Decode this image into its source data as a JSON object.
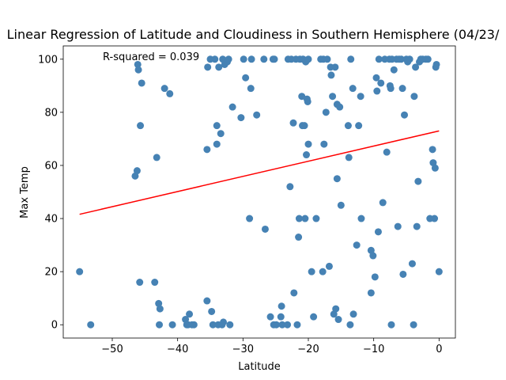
{
  "chart_data": {
    "type": "scatter",
    "title": "Linear Regression of Latitude and Cloudiness in Southern Hemisphere (04/23/",
    "xlabel": "Latitude",
    "ylabel": "Max Temp",
    "xlim": [
      -57.5,
      2.5
    ],
    "ylim": [
      -5,
      105
    ],
    "xticks": [
      -50,
      -40,
      -30,
      -20,
      -10,
      0
    ],
    "yticks": [
      0,
      20,
      40,
      60,
      80,
      100
    ],
    "annotation": "R-squared = 0.039",
    "regression": {
      "x": [
        -55,
        0
      ],
      "y": [
        41.6,
        73.0
      ]
    },
    "colors": {
      "points": "#4682b4",
      "line": "#ff0000"
    },
    "points": [
      [
        -55,
        20
      ],
      [
        -53.3,
        0
      ],
      [
        -46.5,
        56
      ],
      [
        -46.2,
        58
      ],
      [
        -46.1,
        98
      ],
      [
        -46,
        96
      ],
      [
        -45.7,
        75
      ],
      [
        -45.5,
        91
      ],
      [
        -45.8,
        16
      ],
      [
        -43.5,
        16
      ],
      [
        -43.2,
        63
      ],
      [
        -42.9,
        8
      ],
      [
        -42.7,
        6
      ],
      [
        -42.8,
        0
      ],
      [
        -42,
        89
      ],
      [
        -41.2,
        87
      ],
      [
        -40.8,
        0
      ],
      [
        -38.8,
        2
      ],
      [
        -38.6,
        0
      ],
      [
        -38.4,
        0
      ],
      [
        -38.2,
        4
      ],
      [
        -37.8,
        0
      ],
      [
        -37.5,
        0
      ],
      [
        -35.5,
        9
      ],
      [
        -35.5,
        66
      ],
      [
        -35.4,
        97
      ],
      [
        -35,
        100
      ],
      [
        -34.8,
        5
      ],
      [
        -34.6,
        0
      ],
      [
        -34.3,
        100
      ],
      [
        -34,
        75
      ],
      [
        -34,
        68
      ],
      [
        -33.8,
        0
      ],
      [
        -33.7,
        97
      ],
      [
        -33.4,
        72
      ],
      [
        -33.2,
        0
      ],
      [
        -33.1,
        100
      ],
      [
        -33,
        1
      ],
      [
        -32.8,
        98
      ],
      [
        -32.4,
        99
      ],
      [
        -32.2,
        100
      ],
      [
        -32,
        0
      ],
      [
        -31.6,
        82
      ],
      [
        -30.3,
        78
      ],
      [
        -29.9,
        100
      ],
      [
        -29.6,
        93
      ],
      [
        -29,
        40
      ],
      [
        -28.8,
        89
      ],
      [
        -28.7,
        100
      ],
      [
        -27.9,
        79
      ],
      [
        -26.8,
        100
      ],
      [
        -26.6,
        36
      ],
      [
        -25.8,
        3
      ],
      [
        -25.4,
        100
      ],
      [
        -25.3,
        0
      ],
      [
        -25.2,
        100
      ],
      [
        -24.9,
        0
      ],
      [
        -24.2,
        3
      ],
      [
        -24.1,
        7
      ],
      [
        -24,
        0
      ],
      [
        -23.2,
        0
      ],
      [
        -23.1,
        100
      ],
      [
        -22.8,
        52
      ],
      [
        -22.6,
        100
      ],
      [
        -22.3,
        76
      ],
      [
        -22.2,
        12
      ],
      [
        -21.9,
        100
      ],
      [
        -21.7,
        0
      ],
      [
        -21.5,
        33
      ],
      [
        -21.4,
        40
      ],
      [
        -21.3,
        100
      ],
      [
        -21,
        86
      ],
      [
        -20.9,
        75
      ],
      [
        -20.8,
        100
      ],
      [
        -20.6,
        75
      ],
      [
        -20.5,
        40
      ],
      [
        -20.4,
        99
      ],
      [
        -20.3,
        64
      ],
      [
        -20.2,
        85
      ],
      [
        -20.1,
        84
      ],
      [
        -20,
        68
      ],
      [
        -20,
        100
      ],
      [
        -19.5,
        20
      ],
      [
        -19.2,
        3
      ],
      [
        -18.8,
        40
      ],
      [
        -18.1,
        100
      ],
      [
        -17.8,
        20
      ],
      [
        -17.7,
        100
      ],
      [
        -17.6,
        68
      ],
      [
        -17.3,
        80
      ],
      [
        -17.1,
        100
      ],
      [
        -16.8,
        22
      ],
      [
        -16.6,
        97
      ],
      [
        -16.5,
        94
      ],
      [
        -16.3,
        86
      ],
      [
        -16.1,
        4
      ],
      [
        -15.9,
        97
      ],
      [
        -15.8,
        6
      ],
      [
        -15.6,
        55
      ],
      [
        -15.6,
        83
      ],
      [
        -15.4,
        2
      ],
      [
        -15.2,
        82
      ],
      [
        -15,
        45
      ],
      [
        -13.9,
        75
      ],
      [
        -13.8,
        63
      ],
      [
        -13.6,
        0
      ],
      [
        -13.5,
        100
      ],
      [
        -13.2,
        89
      ],
      [
        -13.1,
        4
      ],
      [
        -12.6,
        30
      ],
      [
        -12.3,
        75
      ],
      [
        -12,
        86
      ],
      [
        -11.9,
        40
      ],
      [
        -10.4,
        28
      ],
      [
        -10.4,
        12
      ],
      [
        -10.1,
        26
      ],
      [
        -9.8,
        18
      ],
      [
        -9.6,
        93
      ],
      [
        -9.5,
        88
      ],
      [
        -9.3,
        35
      ],
      [
        -9.2,
        100
      ],
      [
        -8.9,
        91
      ],
      [
        -8.6,
        46
      ],
      [
        -8.3,
        100
      ],
      [
        -8,
        65
      ],
      [
        -7.6,
        100
      ],
      [
        -7.5,
        90
      ],
      [
        -7.4,
        89
      ],
      [
        -7.3,
        0
      ],
      [
        -7.2,
        100
      ],
      [
        -6.9,
        96
      ],
      [
        -6.5,
        100
      ],
      [
        -6.3,
        37
      ],
      [
        -6.1,
        100
      ],
      [
        -5.8,
        100
      ],
      [
        -5.6,
        89
      ],
      [
        -5.5,
        19
      ],
      [
        -5.3,
        79
      ],
      [
        -5,
        100
      ],
      [
        -4.8,
        99
      ],
      [
        -4.5,
        100
      ],
      [
        -4.1,
        23
      ],
      [
        -3.9,
        0
      ],
      [
        -3.8,
        86
      ],
      [
        -3.6,
        97
      ],
      [
        -3.4,
        37
      ],
      [
        -3.2,
        54
      ],
      [
        -3,
        99
      ],
      [
        -2.8,
        100
      ],
      [
        -2.5,
        100
      ],
      [
        -2,
        100
      ],
      [
        -1.7,
        100
      ],
      [
        -1.4,
        40
      ],
      [
        -1,
        66
      ],
      [
        -0.9,
        61
      ],
      [
        -0.7,
        40
      ],
      [
        -0.6,
        59
      ],
      [
        -0.5,
        97
      ],
      [
        -0.4,
        98
      ],
      [
        0,
        20
      ]
    ]
  }
}
